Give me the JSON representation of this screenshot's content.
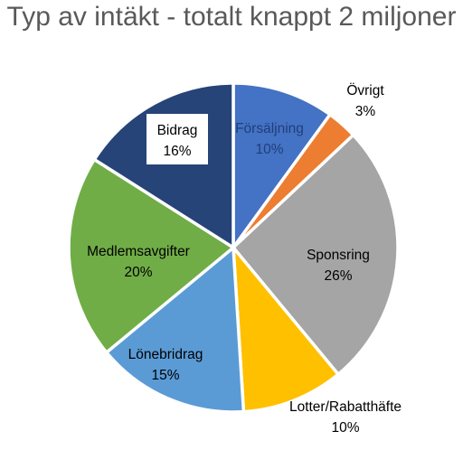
{
  "chart_data": {
    "type": "pie",
    "title": "Typ av intäkt - totalt knappt 2 miljoner",
    "slices": [
      {
        "name": "Försäljning",
        "value": 10,
        "label": "10%",
        "color": "#4472C4",
        "text_color": "#1F3F7A"
      },
      {
        "name": "Övrigt",
        "value": 3,
        "label": "3%",
        "color": "#ED7D31",
        "text_color": "#000000"
      },
      {
        "name": "Sponsring",
        "value": 26,
        "label": "26%",
        "color": "#A5A5A5",
        "text_color": "#000000"
      },
      {
        "name": "Lotter/Rabatthäfte",
        "value": 10,
        "label": "10%",
        "color": "#FFC000",
        "text_color": "#000000"
      },
      {
        "name": "Lönebridrag",
        "value": 15,
        "label": "15%",
        "color": "#5B9BD5",
        "text_color": "#000000"
      },
      {
        "name": "Medlemsavgifter",
        "value": 20,
        "label": "20%",
        "color": "#70AD47",
        "text_color": "#000000"
      },
      {
        "name": "Bidrag",
        "value": 16,
        "label": "16%",
        "color": "#264478",
        "text_color": "#000000"
      }
    ]
  }
}
